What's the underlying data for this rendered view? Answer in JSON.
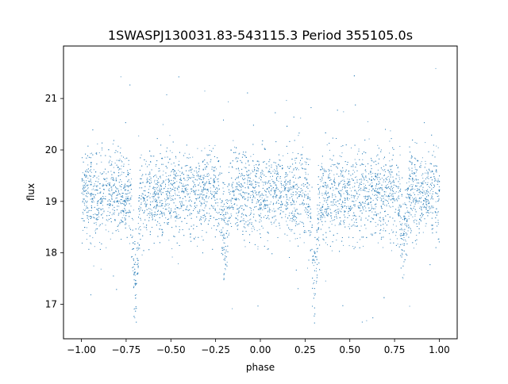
{
  "chart_data": {
    "type": "scatter",
    "title": "1SWASPJ130031.83-543115.3 Period 355105.0s",
    "xlabel": "phase",
    "ylabel": "flux",
    "xlim": [
      -1.1,
      1.1
    ],
    "ylim": [
      16.33,
      22.02
    ],
    "x_ticks": [
      -1.0,
      -0.75,
      -0.5,
      -0.25,
      0.0,
      0.25,
      0.5,
      0.75,
      1.0
    ],
    "x_tick_labels": [
      "−1.00",
      "−0.75",
      "−0.50",
      "−0.25",
      "0.00",
      "0.25",
      "0.50",
      "0.75",
      "1.00"
    ],
    "y_ticks": [
      17,
      18,
      19,
      20,
      21
    ],
    "y_tick_labels": [
      "17",
      "18",
      "19",
      "20",
      "21"
    ],
    "grid": false,
    "point_color": "#1f77b4",
    "model": {
      "phase_range": [
        -1.0,
        1.0
      ],
      "baseline_flux": 19.15,
      "scatter_sigma": 0.42,
      "primary_eclipse": {
        "phases": [
          -0.7,
          0.3
        ],
        "min_flux": 17.45,
        "half_width": 0.018
      },
      "secondary_eclipse": {
        "phases": [
          -0.2,
          0.8
        ],
        "min_flux": 18.3,
        "half_width": 0.02
      },
      "outlier_flux_range": [
        16.6,
        21.8
      ]
    }
  }
}
